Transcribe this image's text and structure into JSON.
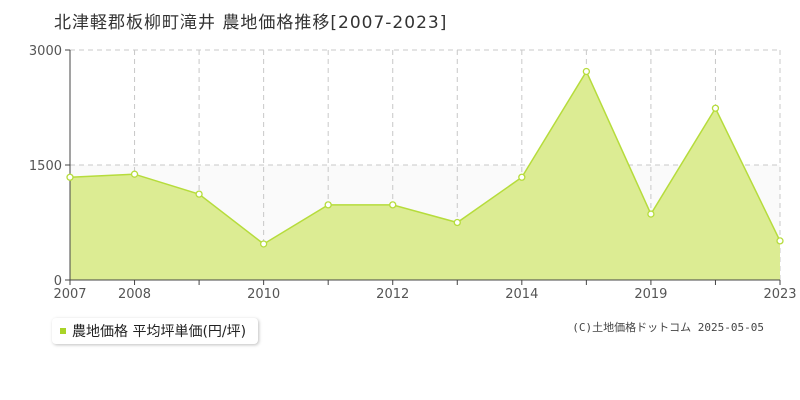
{
  "chart_data": {
    "type": "area",
    "title": "北津軽郡板柳町滝井 農地価格推移[2007-2023]",
    "x": [
      2007,
      2008,
      2009,
      2010,
      2011,
      2012,
      2013,
      2014,
      2015,
      2019,
      2020,
      2023
    ],
    "x_tick_labels": [
      "2007",
      "2008",
      "2010",
      "2012",
      "2014",
      "2019",
      "2023"
    ],
    "y_tick_labels": [
      "0",
      "1500",
      "3000"
    ],
    "ylim": [
      0,
      3000
    ],
    "series": [
      {
        "name": "農地価格 平均坪単価(円/坪)",
        "values": [
          1340,
          1380,
          1120,
          470,
          980,
          980,
          750,
          1340,
          2720,
          860,
          2240,
          510
        ]
      }
    ],
    "grid": true,
    "legend_position": "bottom-left",
    "colors": {
      "fill": "#dcec93",
      "line": "#b6dc3c",
      "grid": "#c8c8c8",
      "legend_marker": "#a9d428"
    }
  },
  "credit": "(C)土地価格ドットコム 2025-05-05"
}
